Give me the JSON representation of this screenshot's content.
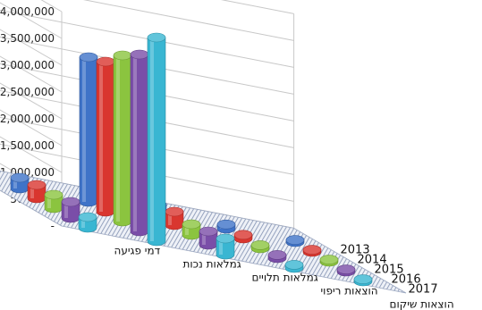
{
  "chart_data": {
    "type": "bar",
    "title": "",
    "xlabel": "",
    "ylabel": "",
    "ylim": [
      0,
      4000000
    ],
    "yticks": [
      "-",
      "500,000",
      "1,000,000",
      "1,500,000",
      "2,000,000",
      "2,500,000",
      "3,000,000",
      "3,500,000",
      "4,000,000"
    ],
    "categories": [
      "דמי פגיעה",
      "גמלאות נכות",
      "גמלאות תלויים",
      "הוצאות ריפוי",
      "הוצאות שיקום"
    ],
    "series": [
      {
        "name": "2017",
        "color": "#39b6d2",
        "values": [
          200000,
          3800000,
          300000,
          60000,
          40000
        ]
      },
      {
        "name": "2016",
        "color": "#7a4ea8",
        "values": [
          300000,
          3300000,
          250000,
          60000,
          40000
        ]
      },
      {
        "name": "2015",
        "color": "#8bc43f",
        "values": [
          250000,
          3100000,
          200000,
          60000,
          40000
        ]
      },
      {
        "name": "2014",
        "color": "#d9362f",
        "values": [
          250000,
          2800000,
          250000,
          70000,
          40000
        ]
      },
      {
        "name": "2013",
        "color": "#3f73c8",
        "values": [
          200000,
          2700000,
          200000,
          80000,
          40000
        ]
      }
    ],
    "grid": true,
    "legend": "right-depth-axis"
  }
}
